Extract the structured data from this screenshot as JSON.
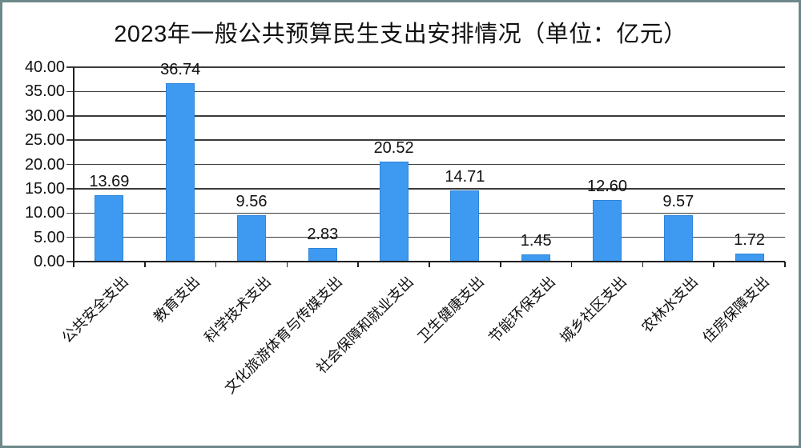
{
  "frame": {
    "border_color": "#6e8889",
    "background": "#ffffff"
  },
  "chart_data": {
    "type": "bar",
    "title": "2023年一般公共预算民生支出安排情况（单位：亿元）",
    "unit_label": "亿元",
    "categories": [
      "公共安全支出",
      "教育支出",
      "科学技术支出",
      "文化旅游体育与传媒支出",
      "社会保障和就业支出",
      "卫生健康支出",
      "节能环保支出",
      "城乡社区支出",
      "农林水支出",
      "住房保障支出"
    ],
    "values": [
      13.69,
      36.74,
      9.56,
      2.83,
      20.52,
      14.71,
      1.45,
      12.6,
      9.57,
      1.72
    ],
    "value_labels": [
      "13.69",
      "36.74",
      "9.56",
      "2.83",
      "20.52",
      "14.71",
      "1.45",
      "12.60",
      "9.57",
      "1.72"
    ],
    "xlabel": "",
    "ylabel": "",
    "ylim": [
      0,
      40
    ],
    "ytick_step": 5,
    "ytick_labels": [
      "0.00",
      "5.00",
      "10.00",
      "15.00",
      "20.00",
      "25.00",
      "30.00",
      "35.00",
      "40.00"
    ],
    "grid": true,
    "legend_position": "none",
    "bar_color": "#3e9af0",
    "bar_border_color": "#2e84d8",
    "gridline_color": "#3c3c3c",
    "axis_color": "#1f1f1f",
    "text_color": "#111111",
    "x_label_rotation_deg": -45
  }
}
